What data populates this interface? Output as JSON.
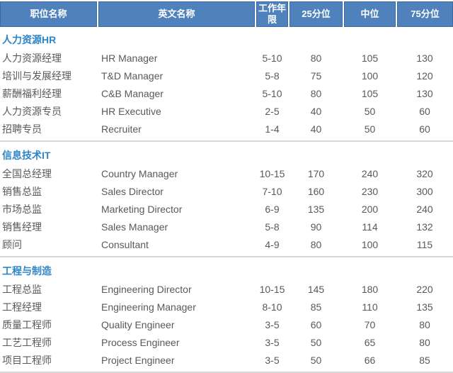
{
  "chart_data": {
    "type": "table",
    "columns": [
      "职位名称",
      "英文名称",
      "工作年限",
      "25分位",
      "中位",
      "75分位"
    ],
    "sections": [
      {
        "title": "人力资源HR",
        "rows": [
          {
            "cn": "人力资源经理",
            "en": "HR Manager",
            "years": "5-10",
            "p25": "80",
            "median": "105",
            "p75": "130"
          },
          {
            "cn": "培训与发展经理",
            "en": "T&D Manager",
            "years": "5-8",
            "p25": "75",
            "median": "100",
            "p75": "120"
          },
          {
            "cn": "薪酬福利经理",
            "en": "C&B Manager",
            "years": "5-10",
            "p25": "80",
            "median": "105",
            "p75": "130"
          },
          {
            "cn": "人力资源专员",
            "en": "HR Executive",
            "years": "2-5",
            "p25": "40",
            "median": "50",
            "p75": "60"
          },
          {
            "cn": "招聘专员",
            "en": "Recruiter",
            "years": "1-4",
            "p25": "40",
            "median": "50",
            "p75": "60"
          }
        ]
      },
      {
        "title": "信息技术IT",
        "rows": [
          {
            "cn": "全国总经理",
            "en": "Country Manager",
            "years": "10-15",
            "p25": "170",
            "median": "240",
            "p75": "320"
          },
          {
            "cn": "销售总监",
            "en": "Sales Director",
            "years": "7-10",
            "p25": "160",
            "median": "230",
            "p75": "300"
          },
          {
            "cn": "市场总监",
            "en": "Marketing Director",
            "years": "6-9",
            "p25": "135",
            "median": "200",
            "p75": "240"
          },
          {
            "cn": "销售经理",
            "en": "Sales Manager",
            "years": "5-8",
            "p25": "90",
            "median": "114",
            "p75": "132"
          },
          {
            "cn": "顾问",
            "en": "Consultant",
            "years": "4-9",
            "p25": "80",
            "median": "100",
            "p75": "115"
          }
        ]
      },
      {
        "title": "工程与制造",
        "rows": [
          {
            "cn": "工程总监",
            "en": "Engineering Director",
            "years": "10-15",
            "p25": "145",
            "median": "180",
            "p75": "220"
          },
          {
            "cn": "工程经理",
            "en": "Engineering Manager",
            "years": "8-10",
            "p25": "85",
            "median": "110",
            "p75": "135"
          },
          {
            "cn": "质量工程师",
            "en": "Quality Engineer",
            "years": "3-5",
            "p25": "60",
            "median": "70",
            "p75": "80"
          },
          {
            "cn": "工艺工程师",
            "en": "Process Engineer",
            "years": "3-5",
            "p25": "50",
            "median": "65",
            "p75": "80"
          },
          {
            "cn": "项目工程师",
            "en": "Project Engineer",
            "years": "3-5",
            "p25": "50",
            "median": "66",
            "p75": "85"
          }
        ]
      }
    ]
  },
  "colors": {
    "header_bg": "#4F81BD",
    "header_border": "#3A6B9E",
    "header_text": "#FFFFFF",
    "section_title": "#2E86C8",
    "body_text": "#595959",
    "divider": "#D8D8D8"
  }
}
